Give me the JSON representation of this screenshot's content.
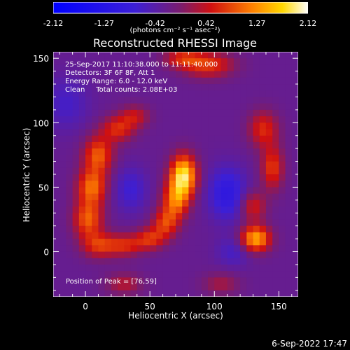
{
  "colorbar": {
    "ticks": [
      "-2.12",
      "-1.27",
      "-0.42",
      "0.42",
      "1.27",
      "2.12"
    ],
    "unit_label": "(photons cm⁻² s⁻¹ asec⁻²)",
    "range": [
      -2.12,
      2.12
    ]
  },
  "chart_data": {
    "type": "heatmap",
    "title": "Reconstructed RHESSI Image",
    "xlabel": "Heliocentric X (arcsec)",
    "ylabel": "Heliocentric Y (arcsec)",
    "xlim": [
      -25,
      165
    ],
    "ylim": [
      -35,
      155
    ],
    "x_ticks": [
      0,
      50,
      100,
      150
    ],
    "y_ticks": [
      0,
      50,
      100,
      150
    ],
    "info_lines": [
      "25-Sep-2017 11:10:38.000 to 11:11:40.000",
      "Detectors: 3F 6F 8F, Att 1",
      "Energy Range: 6.0 - 12.0 keV",
      "Clean     Total counts: 2.08E+03"
    ],
    "peak_label": "Position of Peak = [76,59]",
    "peak": [
      76,
      59
    ],
    "sources": [
      {
        "x": 76,
        "y": 59,
        "sx": 7,
        "sy": 11,
        "amp": 2.1
      },
      {
        "x": 70,
        "y": 40,
        "sx": 7,
        "sy": 10,
        "amp": 1.3
      },
      {
        "x": 62,
        "y": 22,
        "sx": 7,
        "sy": 8,
        "amp": 1.0
      },
      {
        "x": 50,
        "y": 10,
        "sx": 8,
        "sy": 6,
        "amp": 0.9
      },
      {
        "x": 30,
        "y": 5,
        "sx": 10,
        "sy": 6,
        "amp": 0.9
      },
      {
        "x": 10,
        "y": 5,
        "sx": 9,
        "sy": 7,
        "amp": 0.9
      },
      {
        "x": 2,
        "y": 25,
        "sx": 8,
        "sy": 10,
        "amp": 1.2
      },
      {
        "x": 5,
        "y": 50,
        "sx": 8,
        "sy": 10,
        "amp": 1.3
      },
      {
        "x": 10,
        "y": 75,
        "sx": 8,
        "sy": 10,
        "amp": 1.2
      },
      {
        "x": 25,
        "y": 95,
        "sx": 9,
        "sy": 7,
        "amp": 0.9
      },
      {
        "x": 38,
        "y": 105,
        "sx": 8,
        "sy": 6,
        "amp": 0.7
      },
      {
        "x": 132,
        "y": 10,
        "sx": 8,
        "sy": 7,
        "amp": 1.7
      },
      {
        "x": 130,
        "y": 35,
        "sx": 7,
        "sy": 8,
        "amp": 0.8
      },
      {
        "x": 145,
        "y": 65,
        "sx": 6,
        "sy": 12,
        "amp": 1.0
      },
      {
        "x": 138,
        "y": 95,
        "sx": 8,
        "sy": 10,
        "amp": 0.9
      },
      {
        "x": 95,
        "y": 145,
        "sx": 14,
        "sy": 7,
        "amp": 1.0
      },
      {
        "x": 75,
        "y": 150,
        "sx": 10,
        "sy": 5,
        "amp": 0.8
      },
      {
        "x": 30,
        "y": -25,
        "sx": 10,
        "sy": 6,
        "amp": 0.6
      },
      {
        "x": 105,
        "y": -25,
        "sx": 10,
        "sy": 6,
        "amp": 0.5
      },
      {
        "x": 110,
        "y": 45,
        "sx": 10,
        "sy": 14,
        "amp": -0.8
      },
      {
        "x": 35,
        "y": 48,
        "sx": 9,
        "sy": 12,
        "amp": -0.5
      },
      {
        "x": 115,
        "y": 0,
        "sx": 9,
        "sy": 8,
        "amp": -0.4
      },
      {
        "x": -15,
        "y": 115,
        "sx": 12,
        "sy": 14,
        "amp": -0.4
      }
    ]
  },
  "footer": {
    "date": "6-Sep-2022 17:47"
  }
}
